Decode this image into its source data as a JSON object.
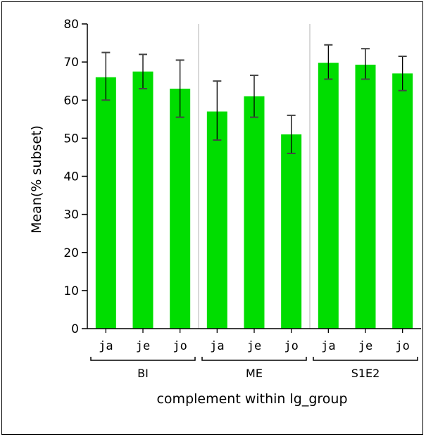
{
  "chart_data": {
    "type": "bar",
    "xlabel": "complement within lg_group",
    "ylabel": "Mean(% subset)",
    "ylim": [
      0,
      80
    ],
    "yticks": [
      "0",
      "10",
      "20",
      "30",
      "40",
      "50",
      "60",
      "70",
      "80"
    ],
    "groups": [
      {
        "name": "BI",
        "categories": [
          "ja",
          "je",
          "jo"
        ],
        "values": [
          66.0,
          67.5,
          63.0
        ],
        "err_low": [
          60.0,
          63.0,
          55.5
        ],
        "err_high": [
          72.5,
          72.0,
          70.5
        ]
      },
      {
        "name": "ME",
        "categories": [
          "ja",
          "je",
          "jo"
        ],
        "values": [
          57.0,
          61.0,
          51.0
        ],
        "err_low": [
          49.5,
          55.5,
          46.0
        ],
        "err_high": [
          65.0,
          66.5,
          56.0
        ]
      },
      {
        "name": "S1E2",
        "categories": [
          "ja",
          "je",
          "jo"
        ],
        "values": [
          69.8,
          69.3,
          67.0
        ],
        "err_low": [
          65.5,
          65.5,
          62.5
        ],
        "err_high": [
          74.5,
          73.5,
          71.5
        ]
      }
    ],
    "bar_color": "#00dd00",
    "grid": false,
    "legend": "none"
  }
}
